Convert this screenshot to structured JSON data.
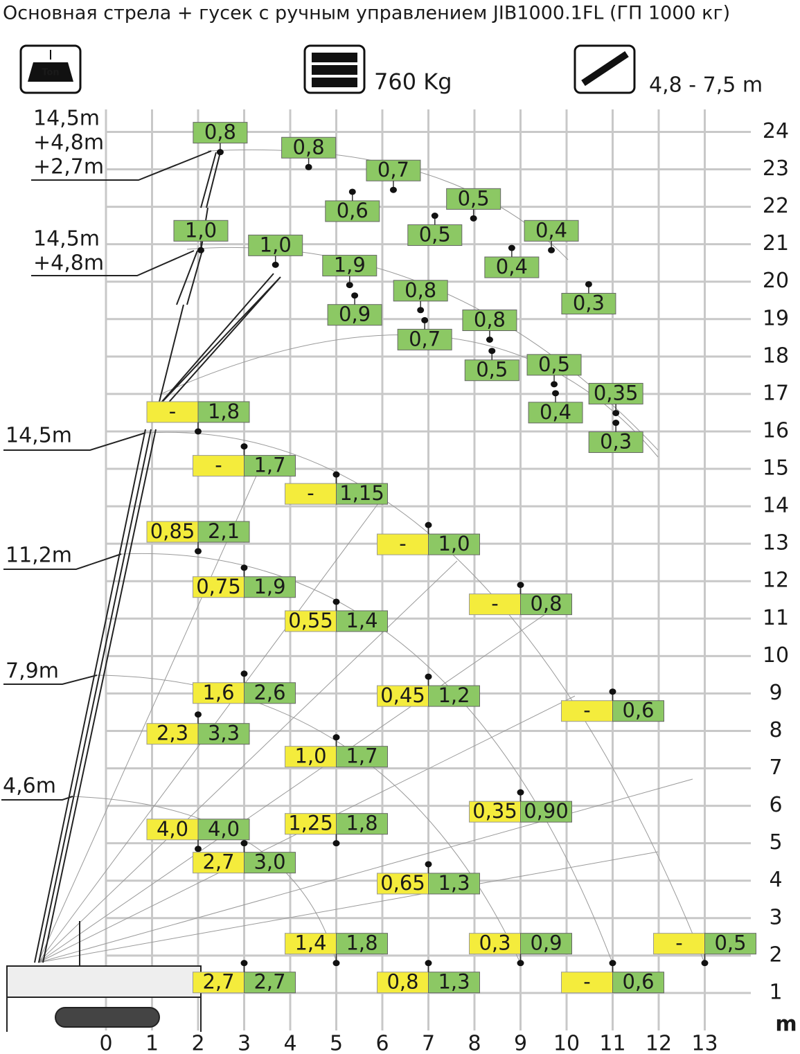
{
  "header": {
    "title": "Основная стрела + гусек с ручным управлением JIB1000.1FL (ГП 1000 кг)",
    "icon_label": "Ton",
    "counterweight": "760 Kg",
    "jib_length": "4,8 - 7,5 m"
  },
  "chart_data": {
    "type": "load_chart",
    "xlim": [
      0,
      14
    ],
    "ylim": [
      0,
      24.6
    ],
    "xticks": [
      0,
      1,
      2,
      3,
      4,
      5,
      6,
      7,
      8,
      9,
      10,
      11,
      12,
      13
    ],
    "yticks": [
      1,
      2,
      3,
      4,
      5,
      6,
      7,
      8,
      9,
      10,
      11,
      12,
      13,
      14,
      15,
      16,
      17,
      18,
      19,
      20,
      21,
      22,
      23,
      24
    ],
    "y_unit": "m",
    "grid": true,
    "boom_labels": [
      [
        "14,5m",
        "+4,8m",
        "+2,7m"
      ],
      [
        "14,5m",
        "+4,8m"
      ],
      [
        "14,5m"
      ],
      [
        "11,2m"
      ],
      [
        "7,9m"
      ],
      [
        "4,6m"
      ]
    ],
    "points": [
      {
        "x": 2,
        "y": 16.0,
        "yellow": "-",
        "green": "1,8"
      },
      {
        "x": 3,
        "y": 15.6,
        "yellow": "-",
        "green": "1,7"
      },
      {
        "x": 5,
        "y": 14.85,
        "yellow": "-",
        "green": "1,15"
      },
      {
        "x": 7,
        "y": 13.5,
        "yellow": "-",
        "green": "1,0"
      },
      {
        "x": 9,
        "y": 11.9,
        "yellow": "-",
        "green": "0,8"
      },
      {
        "x": 11,
        "y": 9.05,
        "yellow": "-",
        "green": "0,6"
      },
      {
        "x": 13,
        "y": 1.8,
        "yellow": "-",
        "green": "0,5"
      },
      {
        "x": 2,
        "y": 12.8,
        "yellow": "0,85",
        "green": "2,1"
      },
      {
        "x": 3,
        "y": 12.36,
        "yellow": "0,75",
        "green": "1,9"
      },
      {
        "x": 5,
        "y": 11.45,
        "yellow": "0,55",
        "green": "1,4"
      },
      {
        "x": 7,
        "y": 9.45,
        "yellow": "0,45",
        "green": "1,2"
      },
      {
        "x": 9,
        "y": 6.36,
        "yellow": "0,35",
        "green": "0,90"
      },
      {
        "x": 11,
        "y": 1.8,
        "yellow": "-",
        "green": "0,6"
      },
      {
        "x": 2,
        "y": 8.44,
        "yellow": "2,3",
        "green": "3,3"
      },
      {
        "x": 3,
        "y": 9.53,
        "yellow": "1,6",
        "green": "2,6"
      },
      {
        "x": 5,
        "y": 7.83,
        "yellow": "1,0",
        "green": "1,7"
      },
      {
        "x": 7,
        "y": 4.44,
        "yellow": "0,65",
        "green": "1,3"
      },
      {
        "x": 9,
        "y": 1.8,
        "yellow": "0,3",
        "green": "0,9"
      },
      {
        "x": 2,
        "y": 4.85,
        "yellow": "4,0",
        "green": "4,0"
      },
      {
        "x": 3,
        "y": 5.0,
        "yellow": "2,7",
        "green": "3,0"
      },
      {
        "x": 5,
        "y": 5.0,
        "yellow": "1,25",
        "green": "1,8"
      },
      {
        "x": 7,
        "y": 1.8,
        "yellow": "0,8",
        "green": "1,3"
      },
      {
        "x": 3,
        "y": 1.8,
        "yellow": "2,7",
        "green": "2,7"
      },
      {
        "x": 5,
        "y": 1.8,
        "yellow": "1,4",
        "green": "1,8"
      },
      {
        "x": 2.48,
        "y": 23.46,
        "green": "0,8"
      },
      {
        "x": 4.4,
        "y": 23.06,
        "green": "0,8"
      },
      {
        "x": 6.24,
        "y": 22.45,
        "green": "0,7"
      },
      {
        "x": 5.35,
        "y": 22.4,
        "green": "0,6"
      },
      {
        "x": 7.14,
        "y": 21.76,
        "green": "0,5"
      },
      {
        "x": 7.98,
        "y": 21.69,
        "green": "0,5"
      },
      {
        "x": 8.81,
        "y": 20.9,
        "green": "0,4"
      },
      {
        "x": 9.67,
        "y": 20.84,
        "green": "0,4"
      },
      {
        "x": 10.48,
        "y": 19.93,
        "green": "0,3"
      },
      {
        "x": 2.06,
        "y": 20.84,
        "green": "1,0"
      },
      {
        "x": 3.68,
        "y": 20.45,
        "green": "1,0"
      },
      {
        "x": 5.29,
        "y": 19.91,
        "green": "1,9"
      },
      {
        "x": 5.4,
        "y": 19.63,
        "green": "0,9"
      },
      {
        "x": 6.83,
        "y": 19.24,
        "green": "0,8"
      },
      {
        "x": 6.92,
        "y": 18.97,
        "green": "0,7"
      },
      {
        "x": 8.33,
        "y": 18.45,
        "green": "0,8"
      },
      {
        "x": 8.38,
        "y": 18.15,
        "green": "0,5"
      },
      {
        "x": 9.73,
        "y": 17.26,
        "green": "0,5"
      },
      {
        "x": 9.76,
        "y": 17.02,
        "green": "0,4"
      },
      {
        "x": 11.07,
        "y": 16.49,
        "green": "0,35"
      },
      {
        "x": 11.07,
        "y": 16.23,
        "green": "0,3"
      }
    ]
  }
}
